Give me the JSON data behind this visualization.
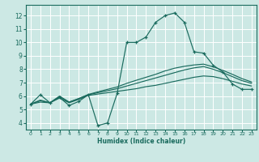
{
  "title": "",
  "xlabel": "Humidex (Indice chaleur)",
  "bg_color": "#cce8e4",
  "grid_color": "#ffffff",
  "line_color": "#1a6b5e",
  "xlim": [
    -0.5,
    23.5
  ],
  "ylim": [
    3.5,
    12.8
  ],
  "yticks": [
    4,
    5,
    6,
    7,
    8,
    9,
    10,
    11,
    12
  ],
  "xticks": [
    0,
    1,
    2,
    3,
    4,
    5,
    6,
    7,
    8,
    9,
    10,
    11,
    12,
    13,
    14,
    15,
    16,
    17,
    18,
    19,
    20,
    21,
    22,
    23
  ],
  "line1_x": [
    0,
    1,
    2,
    3,
    4,
    5,
    6,
    7,
    8,
    9,
    10,
    11,
    12,
    13,
    14,
    15,
    16,
    17,
    18,
    19,
    20,
    21,
    22,
    23
  ],
  "line1_y": [
    5.4,
    6.1,
    5.5,
    5.9,
    5.3,
    5.6,
    6.1,
    3.8,
    4.0,
    6.2,
    10.0,
    10.0,
    10.4,
    11.5,
    12.0,
    12.2,
    11.5,
    9.3,
    9.2,
    8.3,
    7.8,
    6.9,
    6.5,
    6.5
  ],
  "line2_x": [
    0,
    1,
    2,
    3,
    4,
    5,
    6,
    7,
    8,
    9,
    10,
    11,
    12,
    13,
    14,
    15,
    16,
    17,
    18,
    19,
    20,
    21,
    22,
    23
  ],
  "line2_y": [
    5.4,
    5.55,
    5.5,
    5.85,
    5.5,
    5.75,
    6.05,
    6.15,
    6.25,
    6.35,
    6.45,
    6.55,
    6.7,
    6.8,
    6.95,
    7.1,
    7.25,
    7.4,
    7.5,
    7.45,
    7.3,
    7.1,
    6.9,
    6.75
  ],
  "line3_x": [
    0,
    1,
    2,
    3,
    4,
    5,
    6,
    7,
    8,
    9,
    10,
    11,
    12,
    13,
    14,
    15,
    16,
    17,
    18,
    19,
    20,
    21,
    22,
    23
  ],
  "line3_y": [
    5.4,
    5.65,
    5.5,
    5.95,
    5.55,
    5.8,
    6.1,
    6.25,
    6.4,
    6.55,
    6.75,
    6.95,
    7.15,
    7.35,
    7.55,
    7.75,
    7.95,
    8.1,
    8.2,
    8.0,
    7.75,
    7.45,
    7.15,
    6.95
  ],
  "line4_x": [
    0,
    1,
    2,
    3,
    4,
    5,
    6,
    7,
    8,
    9,
    10,
    11,
    12,
    13,
    14,
    15,
    16,
    17,
    18,
    19,
    20,
    21,
    22,
    23
  ],
  "line4_y": [
    5.4,
    5.7,
    5.5,
    6.0,
    5.55,
    5.82,
    6.12,
    6.32,
    6.5,
    6.68,
    6.95,
    7.18,
    7.4,
    7.62,
    7.88,
    8.08,
    8.22,
    8.32,
    8.38,
    8.18,
    7.92,
    7.62,
    7.3,
    7.05
  ]
}
